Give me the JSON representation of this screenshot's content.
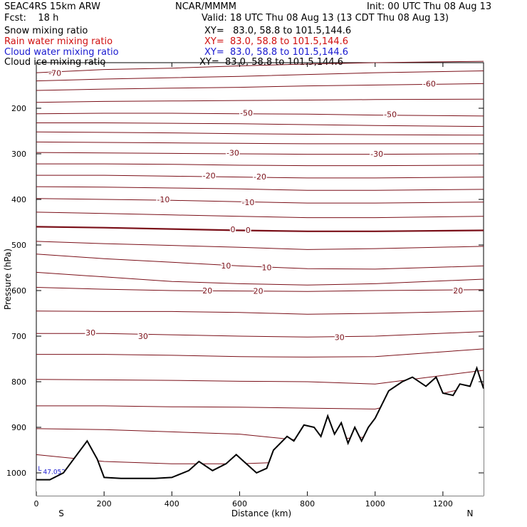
{
  "header": {
    "model": "SEAC4RS 15km ARW",
    "center": "NCAR/MMMM",
    "init": "Init: 00 UTC Thu 08 Aug 13",
    "fcst": "Fcst:    18 h",
    "valid": "Valid: 18 UTC Thu 08 Aug 13 (13 CDT Thu 08 Aug 13)",
    "fields": [
      {
        "name": "Snow mixing ratio",
        "xy": "XY=   83.0, 58.8 to 101.5,144.6",
        "color": "#000000"
      },
      {
        "name": "Rain water mixing ratio",
        "xy": "XY=  83.0, 58.8 to 101.5,144.6",
        "color": "#d01010"
      },
      {
        "name": "Cloud water mixing ratio",
        "xy": "XY=  83.0, 58.8 to 101.5,144.6",
        "color": "#1a1ad0"
      },
      {
        "name": "Cloud ice mixing ratio",
        "xy": "XY=  83.0, 58.8 to 101.5,144.6",
        "color": "#000000"
      }
    ]
  },
  "chart_data": {
    "type": "line",
    "xlabel": "Distance (km)",
    "ylabel": "Pressure (hPa)",
    "xlim": [
      0,
      1320
    ],
    "ylim": [
      1050,
      100
    ],
    "x_ticks": [
      0,
      200,
      400,
      600,
      800,
      1000,
      1200
    ],
    "y_ticks": [
      200,
      300,
      400,
      500,
      600,
      700,
      800,
      900,
      1000
    ],
    "x_end_labels": {
      "left": "S",
      "right": "N"
    },
    "contour_color": "#7a0f18",
    "terrain_color": "#000000",
    "isotherm_step_c": 5,
    "isotherms": [
      {
        "t": -70,
        "x": [
          0,
          200,
          400,
          600,
          800,
          1000,
          1320
        ],
        "p": [
          122,
          115,
          112,
          107,
          103,
          100,
          97
        ]
      },
      {
        "t": -65,
        "x": [
          0,
          200,
          400,
          600,
          800,
          1000,
          1320
        ],
        "p": [
          140,
          136,
          133,
          130,
          126,
          122,
          118
        ]
      },
      {
        "t": -60,
        "x": [
          0,
          200,
          400,
          600,
          800,
          1000,
          1320
        ],
        "p": [
          161,
          158,
          156,
          154,
          151,
          149,
          146
        ]
      },
      {
        "t": -55,
        "x": [
          0,
          200,
          400,
          600,
          800,
          1000,
          1320
        ],
        "p": [
          187,
          185,
          184,
          183,
          182,
          181,
          180
        ]
      },
      {
        "t": -50,
        "x": [
          0,
          200,
          400,
          600,
          800,
          1000,
          1320
        ],
        "p": [
          212,
          211,
          211,
          212,
          213,
          215,
          217
        ]
      },
      {
        "t": -45,
        "x": [
          0,
          200,
          400,
          600,
          800,
          1000,
          1320
        ],
        "p": [
          232,
          232,
          233,
          234,
          236,
          238,
          240
        ]
      },
      {
        "t": -40,
        "x": [
          0,
          200,
          400,
          600,
          800,
          1000,
          1320
        ],
        "p": [
          252,
          253,
          254,
          256,
          257,
          258,
          259
        ]
      },
      {
        "t": -35,
        "x": [
          0,
          200,
          400,
          600,
          800,
          1000,
          1320
        ],
        "p": [
          274,
          275,
          276,
          277,
          278,
          278,
          278
        ]
      },
      {
        "t": -30,
        "x": [
          0,
          200,
          400,
          600,
          800,
          1000,
          1320
        ],
        "p": [
          297,
          298,
          299,
          300,
          301,
          301,
          300
        ]
      },
      {
        "t": -25,
        "x": [
          0,
          200,
          400,
          600,
          800,
          1000,
          1320
        ],
        "p": [
          322,
          322,
          323,
          325,
          326,
          326,
          325
        ]
      },
      {
        "t": -20,
        "x": [
          0,
          200,
          400,
          600,
          800,
          1000,
          1320
        ],
        "p": [
          347,
          347,
          349,
          351,
          353,
          353,
          351
        ]
      },
      {
        "t": -15,
        "x": [
          0,
          200,
          400,
          600,
          800,
          1000,
          1320
        ],
        "p": [
          372,
          373,
          375,
          377,
          380,
          380,
          378
        ]
      },
      {
        "t": -10,
        "x": [
          0,
          200,
          400,
          600,
          800,
          1000,
          1320
        ],
        "p": [
          398,
          400,
          402,
          405,
          408,
          408,
          406
        ]
      },
      {
        "t": -5,
        "x": [
          0,
          200,
          400,
          600,
          800,
          1000,
          1320
        ],
        "p": [
          428,
          431,
          434,
          437,
          440,
          440,
          437
        ]
      },
      {
        "t": 0,
        "x": [
          0,
          200,
          400,
          600,
          800,
          1000,
          1320
        ],
        "p": [
          460,
          462,
          465,
          468,
          470,
          470,
          468
        ]
      },
      {
        "t": 5,
        "x": [
          0,
          200,
          400,
          600,
          800,
          1000,
          1320
        ],
        "p": [
          492,
          497,
          501,
          505,
          510,
          508,
          503
        ]
      },
      {
        "t": 10,
        "x": [
          0,
          200,
          400,
          600,
          800,
          1000,
          1320
        ],
        "p": [
          520,
          530,
          538,
          546,
          552,
          553,
          546
        ]
      },
      {
        "t": 15,
        "x": [
          0,
          200,
          400,
          600,
          800,
          1000,
          1320
        ],
        "p": [
          560,
          570,
          580,
          585,
          588,
          585,
          575
        ]
      },
      {
        "t": 20,
        "x": [
          0,
          200,
          400,
          600,
          800,
          1000,
          1320
        ],
        "p": [
          593,
          597,
          600,
          601,
          602,
          600,
          598
        ]
      },
      {
        "t": 25,
        "x": [
          0,
          200,
          400,
          600,
          800,
          1000,
          1320
        ],
        "p": [
          645,
          646,
          646,
          648,
          652,
          650,
          645
        ]
      },
      {
        "t": 30,
        "x": [
          0,
          200,
          400,
          600,
          800,
          1000,
          1320
        ],
        "p": [
          694,
          694,
          697,
          700,
          702,
          700,
          690
        ]
      },
      {
        "t": 35,
        "x": [
          0,
          200,
          400,
          600,
          800,
          1000,
          1320
        ],
        "p": [
          740,
          740,
          742,
          745,
          746,
          745,
          728
        ]
      },
      {
        "t": 40,
        "x": [
          0,
          200,
          400,
          600,
          800,
          1000,
          1320
        ],
        "p": [
          795,
          796,
          797,
          799,
          800,
          805,
          775
        ]
      },
      {
        "t": 45,
        "x": [
          0,
          200,
          400,
          600,
          800,
          1000,
          1320
        ],
        "p": [
          853,
          853,
          855,
          856,
          858,
          860,
          805
        ]
      },
      {
        "t": 50,
        "x": [
          0,
          200,
          400,
          600,
          800,
          1000,
          1320
        ],
        "p": [
          903,
          905,
          910,
          915,
          930,
          920,
          830
        ]
      },
      {
        "t": 55,
        "x": [
          0,
          200,
          400,
          600,
          800,
          1000,
          1320
        ],
        "p": [
          960,
          975,
          980,
          980,
          975,
          950,
          850
        ]
      }
    ],
    "contour_labels": [
      {
        "text": "-70",
        "x": 55,
        "p": 123
      },
      {
        "text": "-60",
        "x": 1160,
        "p": 146
      },
      {
        "text": "-50",
        "x": 620,
        "p": 210
      },
      {
        "text": "-50",
        "x": 1045,
        "p": 213
      },
      {
        "text": "-30",
        "x": 580,
        "p": 298
      },
      {
        "text": "-30",
        "x": 1005,
        "p": 300
      },
      {
        "text": "-20",
        "x": 510,
        "p": 348
      },
      {
        "text": "-20",
        "x": 660,
        "p": 350
      },
      {
        "text": "-10",
        "x": 375,
        "p": 400
      },
      {
        "text": "-10",
        "x": 625,
        "p": 406
      },
      {
        "text": "0",
        "x": 580,
        "p": 466
      },
      {
        "text": "0",
        "x": 625,
        "p": 467
      },
      {
        "text": "10",
        "x": 560,
        "p": 545
      },
      {
        "text": "10",
        "x": 680,
        "p": 549
      },
      {
        "text": "20",
        "x": 505,
        "p": 600
      },
      {
        "text": "20",
        "x": 655,
        "p": 601
      },
      {
        "text": "20",
        "x": 1245,
        "p": 600
      },
      {
        "text": "30",
        "x": 315,
        "p": 700
      },
      {
        "text": "30",
        "x": 895,
        "p": 702
      },
      {
        "text": "30",
        "x": 160,
        "p": 692
      }
    ],
    "terrain": {
      "x": [
        0,
        40,
        80,
        110,
        150,
        180,
        200,
        250,
        300,
        350,
        400,
        450,
        480,
        520,
        560,
        590,
        620,
        650,
        680,
        700,
        740,
        760,
        790,
        820,
        840,
        860,
        880,
        900,
        920,
        940,
        960,
        980,
        1000,
        1040,
        1080,
        1110,
        1150,
        1180,
        1200,
        1230,
        1250,
        1280,
        1300,
        1320
      ],
      "p": [
        1015,
        1015,
        1000,
        970,
        930,
        970,
        1010,
        1012,
        1012,
        1012,
        1010,
        995,
        975,
        995,
        980,
        960,
        980,
        1000,
        990,
        950,
        920,
        930,
        895,
        900,
        920,
        875,
        915,
        890,
        935,
        900,
        930,
        900,
        880,
        820,
        800,
        790,
        810,
        790,
        825,
        830,
        805,
        810,
        770,
        815
      ]
    },
    "minor_labels": [
      {
        "text": "L",
        "x": 5,
        "p": 995,
        "color": "#1a1ad0"
      },
      {
        "text": "47.052",
        "x": 20,
        "p": 1002,
        "color": "#1a1ad0"
      }
    ]
  }
}
